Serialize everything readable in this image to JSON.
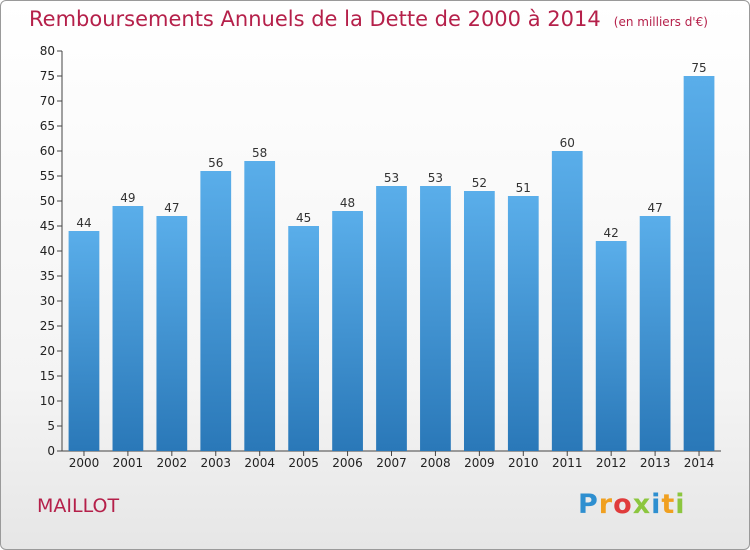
{
  "header": {
    "title": "Remboursements Annuels de la Dette de 2000 à 2014",
    "unit": "(en milliers d'€)"
  },
  "footer": {
    "city": "MAILLOT",
    "logo_letters": [
      "P",
      "r",
      "o",
      "x",
      "i",
      "t",
      "i"
    ],
    "logo_colors": [
      "#2e8fd0",
      "#f0a020",
      "#e03c3c",
      "#8cc63f",
      "#2e8fd0",
      "#f0a020",
      "#8cc63f"
    ]
  },
  "chart_data": {
    "type": "bar",
    "title": "Remboursements Annuels de la Dette de 2000 à 2014",
    "subtitle": "(en milliers d'€)",
    "xlabel": "",
    "ylabel": "",
    "categories": [
      "2000",
      "2001",
      "2002",
      "2003",
      "2004",
      "2005",
      "2006",
      "2007",
      "2008",
      "2009",
      "2010",
      "2011",
      "2012",
      "2013",
      "2014"
    ],
    "values": [
      44,
      49,
      47,
      56,
      58,
      45,
      48,
      53,
      53,
      52,
      51,
      60,
      42,
      47,
      75
    ],
    "ylim": [
      0,
      80
    ],
    "yticks": [
      0,
      5,
      10,
      15,
      20,
      25,
      30,
      35,
      40,
      45,
      50,
      55,
      60,
      65,
      70,
      75,
      80
    ],
    "grid": false,
    "bar_color_top": "#5aaeea",
    "bar_color_bottom": "#2a78b8"
  }
}
